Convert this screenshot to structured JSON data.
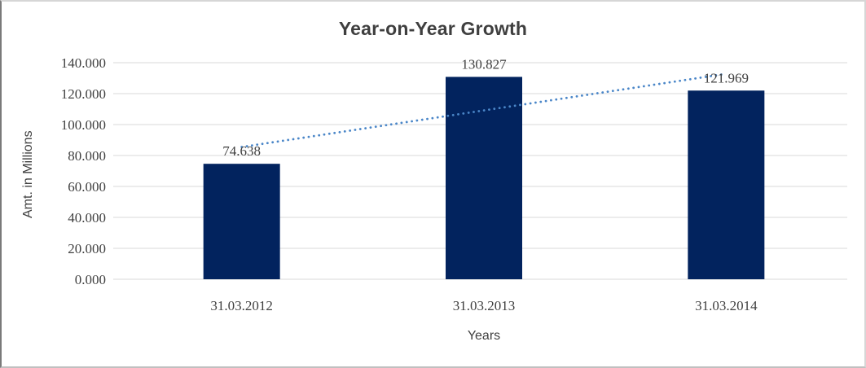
{
  "chart_data": {
    "type": "bar",
    "title": "Year-on-Year Growth",
    "xlabel": "Years",
    "ylabel": "Amt. in Millions",
    "categories": [
      "31.03.2012",
      "31.03.2013",
      "31.03.2014"
    ],
    "values": [
      74.638,
      130.827,
      121.969
    ],
    "value_labels": [
      "74.638",
      "130.827",
      "121.969"
    ],
    "ylim": [
      0,
      140
    ],
    "ytick_step": 20,
    "ytick_labels": [
      "0.000",
      "20.000",
      "40.000",
      "60.000",
      "80.000",
      "100.000",
      "120.000",
      "140.000"
    ],
    "grid": true,
    "legend": false,
    "trendline": {
      "type": "linear",
      "style": "dotted",
      "start_value": 85.5,
      "end_value": 132.8
    },
    "colors": {
      "bar": "#02235e",
      "trendline": "#4a86c8",
      "gridline": "#d9d9d9",
      "text": "#3f3f3f"
    }
  }
}
